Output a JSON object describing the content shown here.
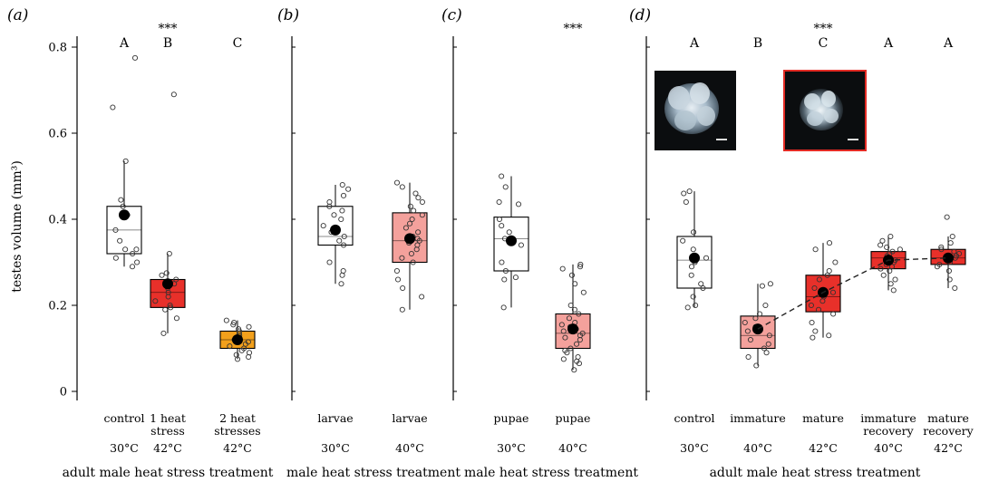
{
  "colors": {
    "box_white": "#ffffff",
    "box_red": "#e8302a",
    "box_orange": "#f2a01c",
    "box_pink": "#f4a19c",
    "mean": "#000000",
    "inset_border": "#e32b24"
  },
  "chart_data": {
    "ylabel": "testes volume (mm³)",
    "y_ticks": [
      "0",
      "0.2",
      "0.4",
      "0.6",
      "0.8"
    ],
    "ylim": [
      -0.02,
      0.83
    ],
    "grid": false,
    "panels": [
      {
        "label": "(a)",
        "type": "box",
        "significance": "***",
        "xtitle": "adult male heat stress treatment",
        "groups": [
          {
            "name": "control",
            "temp": "30°C",
            "letter": "A",
            "color": "box_white",
            "q1": 0.32,
            "median": 0.375,
            "q3": 0.43,
            "whisker_low": 0.29,
            "whisker_high": 0.535,
            "mean": 0.41,
            "points": [
              0.775,
              0.66,
              0.535,
              0.445,
              0.43,
              0.41,
              0.375,
              0.35,
              0.33,
              0.33,
              0.32,
              0.31,
              0.3,
              0.29
            ]
          },
          {
            "name": "1 heat stress",
            "temp": "42°C",
            "letter": "B",
            "color": "box_red",
            "q1": 0.195,
            "median": 0.23,
            "q3": 0.26,
            "whisker_low": 0.135,
            "whisker_high": 0.32,
            "mean": 0.25,
            "points": [
              0.69,
              0.32,
              0.275,
              0.27,
              0.26,
              0.25,
              0.24,
              0.23,
              0.22,
              0.21,
              0.2,
              0.195,
              0.19,
              0.17,
              0.135
            ]
          },
          {
            "name": "2 heat stresses",
            "temp": "42°C",
            "letter": "C",
            "color": "box_orange",
            "q1": 0.1,
            "median": 0.12,
            "q3": 0.14,
            "whisker_low": 0.075,
            "whisker_high": 0.165,
            "mean": 0.12,
            "points": [
              0.165,
              0.16,
              0.155,
              0.15,
              0.145,
              0.14,
              0.135,
              0.13,
              0.125,
              0.12,
              0.115,
              0.11,
              0.105,
              0.1,
              0.095,
              0.09,
              0.085,
              0.08,
              0.075
            ]
          }
        ]
      },
      {
        "label": "(b)",
        "type": "box",
        "significance": "",
        "xtitle": "male heat stress treatment",
        "groups": [
          {
            "name": "larvae",
            "temp": "30°C",
            "letter": "",
            "color": "box_white",
            "q1": 0.34,
            "median": 0.36,
            "q3": 0.43,
            "whisker_low": 0.25,
            "whisker_high": 0.48,
            "mean": 0.375,
            "points": [
              0.48,
              0.47,
              0.455,
              0.44,
              0.43,
              0.42,
              0.41,
              0.4,
              0.385,
              0.37,
              0.36,
              0.35,
              0.34,
              0.3,
              0.28,
              0.27,
              0.25
            ]
          },
          {
            "name": "larvae",
            "temp": "40°C",
            "letter": "",
            "color": "box_pink",
            "q1": 0.3,
            "median": 0.35,
            "q3": 0.415,
            "whisker_low": 0.19,
            "whisker_high": 0.485,
            "mean": 0.355,
            "points": [
              0.485,
              0.475,
              0.46,
              0.45,
              0.44,
              0.43,
              0.42,
              0.41,
              0.4,
              0.39,
              0.38,
              0.37,
              0.36,
              0.355,
              0.35,
              0.345,
              0.34,
              0.33,
              0.32,
              0.31,
              0.3,
              0.28,
              0.26,
              0.24,
              0.22,
              0.19
            ]
          }
        ]
      },
      {
        "label": "(c)",
        "type": "box",
        "significance": "***",
        "xtitle": "male heat stress treatment",
        "groups": [
          {
            "name": "pupae",
            "temp": "30°C",
            "letter": "",
            "color": "box_white",
            "q1": 0.28,
            "median": 0.355,
            "q3": 0.405,
            "whisker_low": 0.195,
            "whisker_high": 0.5,
            "mean": 0.35,
            "points": [
              0.5,
              0.475,
              0.44,
              0.435,
              0.4,
              0.385,
              0.37,
              0.355,
              0.34,
              0.3,
              0.28,
              0.265,
              0.26,
              0.195
            ]
          },
          {
            "name": "pupae",
            "temp": "40°C",
            "letter": "",
            "color": "box_pink",
            "q1": 0.1,
            "median": 0.135,
            "q3": 0.18,
            "whisker_low": 0.05,
            "whisker_high": 0.295,
            "mean": 0.145,
            "points": [
              0.295,
              0.29,
              0.285,
              0.27,
              0.25,
              0.23,
              0.2,
              0.19,
              0.18,
              0.17,
              0.16,
              0.155,
              0.15,
              0.145,
              0.14,
              0.135,
              0.13,
              0.125,
              0.12,
              0.11,
              0.1,
              0.095,
              0.09,
              0.08,
              0.075,
              0.07,
              0.065,
              0.05
            ]
          }
        ]
      },
      {
        "label": "(d)",
        "type": "box",
        "significance": "***",
        "xtitle": "adult male heat stress treatment",
        "mean_line": true,
        "mean_line_groups": [
          1,
          2,
          3,
          4
        ],
        "groups": [
          {
            "name": "control",
            "temp": "30°C",
            "letter": "A",
            "color": "box_white",
            "q1": 0.24,
            "median": 0.305,
            "q3": 0.36,
            "whisker_low": 0.195,
            "whisker_high": 0.465,
            "mean": 0.31,
            "points": [
              0.465,
              0.46,
              0.44,
              0.37,
              0.35,
              0.33,
              0.31,
              0.3,
              0.29,
              0.27,
              0.25,
              0.24,
              0.22,
              0.2,
              0.195
            ]
          },
          {
            "name": "immature",
            "temp": "40°C",
            "letter": "B",
            "color": "box_pink",
            "q1": 0.1,
            "median": 0.13,
            "q3": 0.175,
            "whisker_low": 0.06,
            "whisker_high": 0.25,
            "mean": 0.145,
            "points": [
              0.25,
              0.245,
              0.2,
              0.18,
              0.17,
              0.16,
              0.15,
              0.14,
              0.13,
              0.12,
              0.11,
              0.1,
              0.09,
              0.08,
              0.06
            ]
          },
          {
            "name": "mature",
            "temp": "42°C",
            "letter": "C",
            "color": "box_red",
            "q1": 0.185,
            "median": 0.22,
            "q3": 0.27,
            "whisker_low": 0.125,
            "whisker_high": 0.345,
            "mean": 0.23,
            "points": [
              0.345,
              0.33,
              0.3,
              0.28,
              0.27,
              0.26,
              0.24,
              0.23,
              0.22,
              0.21,
              0.2,
              0.19,
              0.18,
              0.16,
              0.14,
              0.13,
              0.125
            ]
          },
          {
            "name": "immature recovery",
            "temp": "40°C",
            "letter": "A",
            "color": "box_red",
            "q1": 0.285,
            "median": 0.31,
            "q3": 0.325,
            "whisker_low": 0.235,
            "whisker_high": 0.36,
            "mean": 0.305,
            "points": [
              0.36,
              0.35,
              0.34,
              0.335,
              0.33,
              0.325,
              0.32,
              0.315,
              0.31,
              0.305,
              0.3,
              0.295,
              0.29,
              0.285,
              0.28,
              0.27,
              0.26,
              0.25,
              0.235
            ]
          },
          {
            "name": "mature recovery",
            "temp": "42°C",
            "letter": "A",
            "color": "box_red",
            "q1": 0.295,
            "median": 0.31,
            "q3": 0.33,
            "whisker_low": 0.24,
            "whisker_high": 0.36,
            "mean": 0.31,
            "points": [
              0.405,
              0.36,
              0.345,
              0.335,
              0.33,
              0.325,
              0.32,
              0.315,
              0.31,
              0.305,
              0.3,
              0.295,
              0.29,
              0.28,
              0.26,
              0.24
            ]
          }
        ]
      }
    ]
  }
}
